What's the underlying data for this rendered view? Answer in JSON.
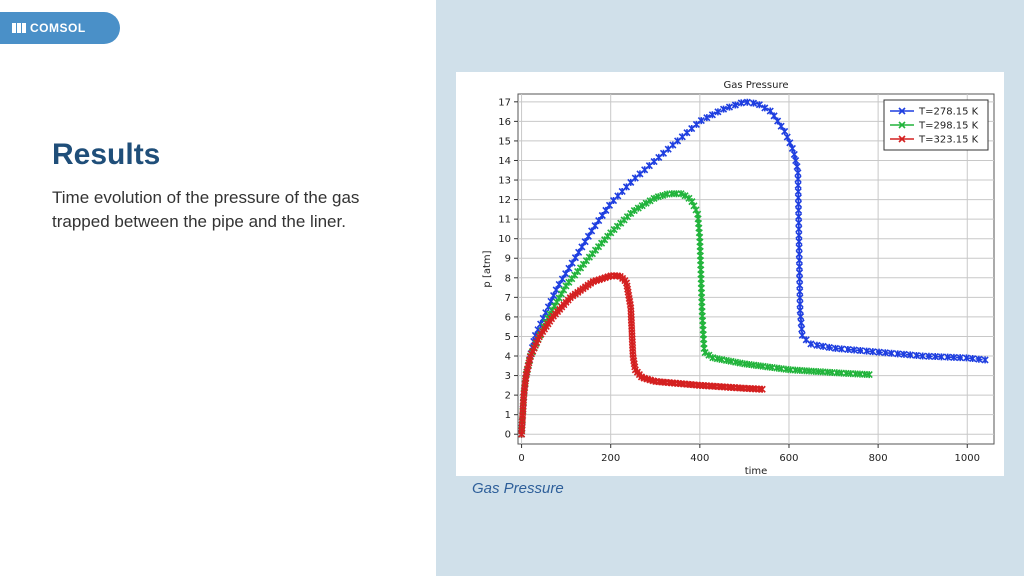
{
  "logo": {
    "text": "COMSOL",
    "color": "#4a90c8"
  },
  "heading": "Results",
  "description": "Time evolution of the pressure of the gas trapped between the pipe and the liner.",
  "caption": "Gas Pressure",
  "chart_data": {
    "type": "line",
    "title": "Gas Pressure",
    "xlabel": "time",
    "ylabel": "p [atm]",
    "xlim": [
      -8,
      1060
    ],
    "ylim": [
      -0.5,
      17.4
    ],
    "xticks": [
      0,
      200,
      400,
      600,
      800,
      1000
    ],
    "yticks": [
      0,
      1,
      2,
      3,
      4,
      5,
      6,
      7,
      8,
      9,
      10,
      11,
      12,
      13,
      14,
      15,
      16,
      17
    ],
    "grid": true,
    "legend_position": "top-right",
    "series": [
      {
        "name": "T=278.15 K",
        "color": "#1f3fe0",
        "marker": "x",
        "points": [
          [
            0,
            0
          ],
          [
            5,
            2
          ],
          [
            10,
            3
          ],
          [
            20,
            4
          ],
          [
            30,
            5
          ],
          [
            50,
            6
          ],
          [
            80,
            7.5
          ],
          [
            120,
            9
          ],
          [
            160,
            10.5
          ],
          [
            200,
            11.8
          ],
          [
            250,
            13
          ],
          [
            300,
            14
          ],
          [
            350,
            15
          ],
          [
            400,
            16
          ],
          [
            450,
            16.6
          ],
          [
            500,
            17
          ],
          [
            530,
            16.9
          ],
          [
            560,
            16.5
          ],
          [
            590,
            15.5
          ],
          [
            610,
            14.5
          ],
          [
            620,
            13.5
          ],
          [
            625,
            6.3
          ],
          [
            630,
            5
          ],
          [
            650,
            4.6
          ],
          [
            700,
            4.4
          ],
          [
            800,
            4.2
          ],
          [
            900,
            4
          ],
          [
            1000,
            3.9
          ],
          [
            1040,
            3.8
          ]
        ]
      },
      {
        "name": "T=298.15 K",
        "color": "#22b43c",
        "marker": "x",
        "points": [
          [
            0,
            0
          ],
          [
            5,
            2
          ],
          [
            10,
            3
          ],
          [
            20,
            4
          ],
          [
            40,
            5
          ],
          [
            60,
            6
          ],
          [
            100,
            7.6
          ],
          [
            150,
            9
          ],
          [
            200,
            10.3
          ],
          [
            250,
            11.4
          ],
          [
            300,
            12.1
          ],
          [
            330,
            12.3
          ],
          [
            360,
            12.3
          ],
          [
            380,
            12
          ],
          [
            395,
            11.3
          ],
          [
            400,
            10
          ],
          [
            405,
            6.3
          ],
          [
            410,
            4.2
          ],
          [
            430,
            3.9
          ],
          [
            500,
            3.6
          ],
          [
            600,
            3.3
          ],
          [
            700,
            3.15
          ],
          [
            780,
            3.05
          ]
        ]
      },
      {
        "name": "T=323.15 K",
        "color": "#d42020",
        "marker": "x",
        "points": [
          [
            0,
            0
          ],
          [
            5,
            2
          ],
          [
            10,
            3
          ],
          [
            20,
            4
          ],
          [
            40,
            5
          ],
          [
            70,
            6
          ],
          [
            110,
            7
          ],
          [
            160,
            7.8
          ],
          [
            200,
            8.1
          ],
          [
            220,
            8.1
          ],
          [
            235,
            7.8
          ],
          [
            245,
            6.5
          ],
          [
            250,
            4
          ],
          [
            255,
            3.3
          ],
          [
            270,
            2.9
          ],
          [
            300,
            2.7
          ],
          [
            400,
            2.5
          ],
          [
            500,
            2.35
          ],
          [
            540,
            2.3
          ]
        ]
      }
    ]
  }
}
